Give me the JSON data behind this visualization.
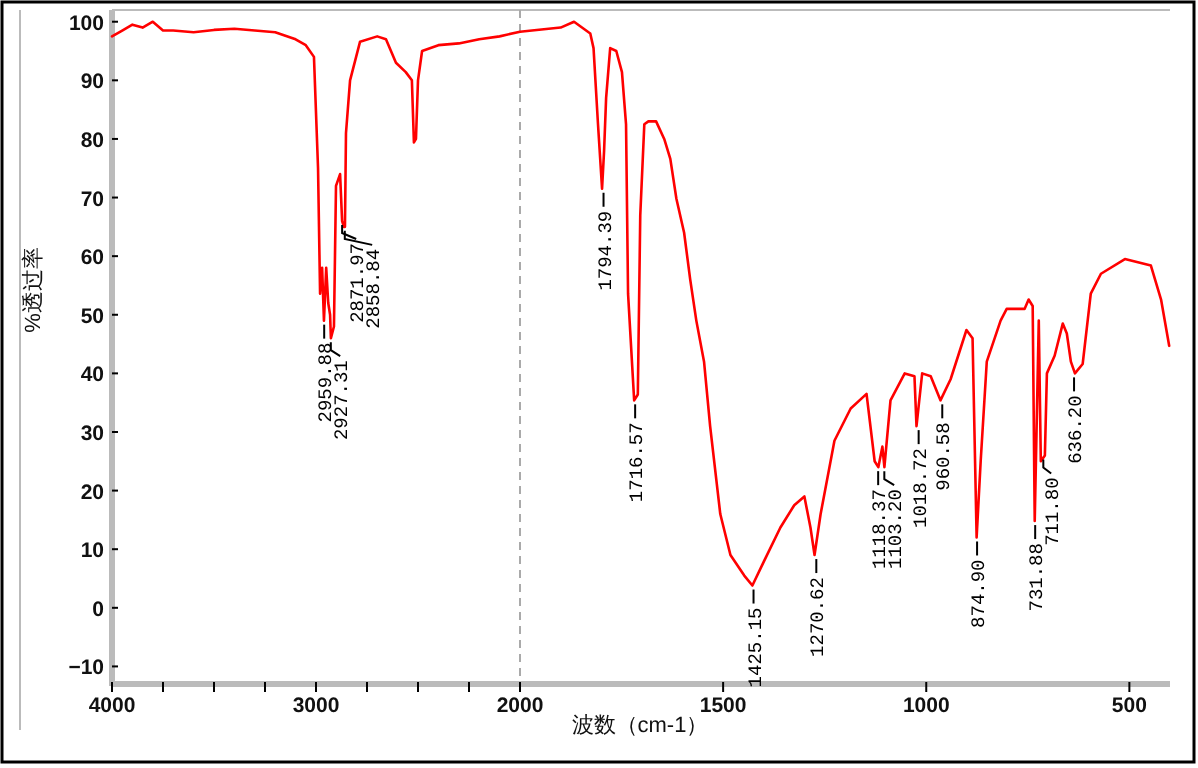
{
  "chart_data": [
    {
      "type": "line",
      "ylabel": "%透过率",
      "xlim": [
        4000,
        2000
      ],
      "ylim": [
        -13,
        102
      ],
      "xticks": [
        4000,
        {
          "value": 3750,
          "label": null
        },
        {
          "value": 3500,
          "label": null
        },
        {
          "value": 3250,
          "label": null
        },
        3000,
        {
          "value": 2750,
          "label": null
        },
        {
          "value": 2500,
          "label": null
        },
        {
          "value": 2250,
          "label": null
        },
        {
          "value": 2000,
          "label": null
        }
      ],
      "yticks": [
        -10,
        0,
        10,
        20,
        30,
        40,
        50,
        60,
        70,
        80,
        90,
        100
      ],
      "series": [
        {
          "color": "#ff0000",
          "x": [
            4000,
            3950,
            3900,
            3850,
            3800,
            3750,
            3700,
            3600,
            3500,
            3400,
            3300,
            3200,
            3100,
            3050,
            3010,
            2990,
            2980,
            2970,
            2961,
            2950,
            2940,
            2931,
            2927,
            2912,
            2902,
            2882,
            2872,
            2863,
            2858,
            2853,
            2833,
            2784,
            2700,
            2657,
            2608,
            2560,
            2530,
            2520,
            2510,
            2500,
            2480,
            2400,
            2300,
            2200,
            2100,
            2000
          ],
          "values": [
            97.5,
            98.5,
            99.5,
            99,
            100,
            98.5,
            98.5,
            98.2,
            98.6,
            98.8,
            98.5,
            98.2,
            97,
            96,
            94,
            75,
            53.6,
            58,
            49,
            58,
            52,
            50,
            46,
            48,
            72,
            74,
            66,
            65,
            65,
            81,
            90,
            96.6,
            97.5,
            97,
            93,
            91.4,
            90,
            79.4,
            80,
            90,
            95,
            96,
            96.3,
            97,
            97.5,
            98.3
          ]
        }
      ],
      "annotations": [
        {
          "text": "2959.88",
          "x": 2959.88,
          "y": 49
        },
        {
          "text": "2927.31",
          "x": 2927.31,
          "y": 46
        },
        {
          "text": "2871.97",
          "x": 2871.97,
          "y": 66
        },
        {
          "text": "2858.84",
          "x": 2858.84,
          "y": 65
        }
      ]
    },
    {
      "type": "line",
      "xlabel": "波数（cm-1）",
      "xlim": [
        2000,
        400
      ],
      "ylim": [
        -13,
        102
      ],
      "tick_labels": "x",
      "xticks": [
        2000,
        1500,
        1000,
        500
      ],
      "ref_lines": [
        {
          "axis": "x",
          "value": 2000,
          "color": "#aaaaaa",
          "line_style": "dashed"
        }
      ],
      "series": [
        {
          "color": "#ff0000",
          "x": [
            2000,
            1900,
            1867,
            1827,
            1819,
            1808,
            1798,
            1793,
            1788,
            1778,
            1763,
            1749,
            1739,
            1734,
            1719,
            1710,
            1704,
            1694,
            1684,
            1665,
            1645,
            1630,
            1615,
            1596,
            1581,
            1566,
            1547,
            1532,
            1507,
            1482,
            1448,
            1428,
            1399,
            1359,
            1325,
            1300,
            1285,
            1275,
            1260,
            1226,
            1186,
            1147,
            1127,
            1118,
            1108,
            1103,
            1088,
            1053,
            1029,
            1024,
            1010,
            989,
            965,
            940,
            901,
            886,
            876,
            866,
            851,
            817,
            802,
            758,
            748,
            738,
            733,
            723,
            718,
            708,
            703,
            684,
            664,
            654,
            644,
            634,
            615,
            595,
            570,
            511,
            447,
            422,
            402
          ],
          "values": [
            98.3,
            99,
            100,
            98,
            95.5,
            82.5,
            71.5,
            78,
            87,
            95.5,
            95,
            91.4,
            82.5,
            53.6,
            35.4,
            36.4,
            67,
            82.5,
            83,
            83,
            80,
            76.6,
            69.8,
            64,
            56,
            49,
            42,
            31,
            16,
            9,
            5.5,
            3.8,
            8,
            13.7,
            17.5,
            19,
            13.7,
            9,
            16,
            28.5,
            34,
            36.5,
            25,
            24,
            27.5,
            24,
            35.4,
            40,
            39.5,
            31,
            40,
            39.5,
            35.4,
            39,
            47.4,
            46,
            12,
            25,
            42,
            49,
            51,
            51,
            52.6,
            51.5,
            14.8,
            49,
            25,
            26,
            40,
            43,
            48.5,
            46.8,
            42,
            40,
            41.6,
            53.6,
            57,
            59.5,
            58.4,
            52.6,
            44.7
          ]
        }
      ],
      "annotations": [
        {
          "text": "1794.39",
          "x": 1794.39,
          "y": 71.5
        },
        {
          "text": "1716.57",
          "x": 1716.57,
          "y": 35.4
        },
        {
          "text": "1425.15",
          "x": 1425.15,
          "y": 3.8
        },
        {
          "text": "1270.62",
          "x": 1270.62,
          "y": 9
        },
        {
          "text": "1118.37",
          "x": 1118.37,
          "y": 24
        },
        {
          "text": "1103.20",
          "x": 1103.2,
          "y": 24
        },
        {
          "text": "1018.72",
          "x": 1018.72,
          "y": 31
        },
        {
          "text": "960.58",
          "x": 960.58,
          "y": 35.4
        },
        {
          "text": "874.90",
          "x": 874.9,
          "y": 12
        },
        {
          "text": "731.88",
          "x": 731.88,
          "y": 14.8
        },
        {
          "text": "711.80",
          "x": 711.8,
          "y": 26
        },
        {
          "text": "636.20",
          "x": 636.2,
          "y": 40
        }
      ]
    }
  ]
}
